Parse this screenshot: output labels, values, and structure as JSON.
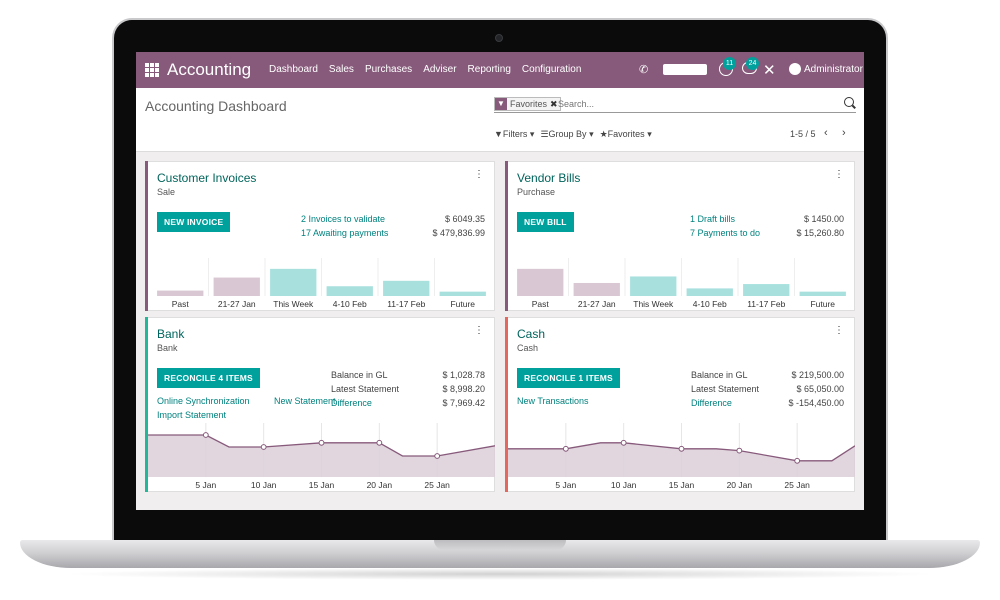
{
  "app": {
    "name": "Accounting",
    "menu": [
      "Dashboard",
      "Sales",
      "Purchases",
      "Adviser",
      "Reporting",
      "Configuration"
    ],
    "activity_count": "11",
    "message_count": "24",
    "user": "Administrator",
    "brand_color": "#875a7b",
    "accent_color": "#00a09d"
  },
  "control": {
    "title": "Accounting Dashboard",
    "facet_label": "Favorites",
    "search_placeholder": "Search...",
    "filters_label": "Filters",
    "groupby_label": "Group By",
    "favorites_label": "Favorites",
    "pager": "1-5 / 5"
  },
  "cards": {
    "customer_invoices": {
      "title": "Customer Invoices",
      "subtitle": "Sale",
      "button": "NEW INVOICE",
      "links": [
        "2 Invoices to validate",
        "17 Awaiting payments"
      ],
      "amounts": [
        "$ 6049.35",
        "$ 479,836.99"
      ],
      "accent": "#875a7b"
    },
    "vendor_bills": {
      "title": "Vendor Bills",
      "subtitle": "Purchase",
      "button": "NEW BILL",
      "links": [
        "1 Draft bills",
        "7 Payments to do"
      ],
      "amounts": [
        "$ 1450.00",
        "$ 15,260.80"
      ],
      "accent": "#875a7b"
    },
    "bank": {
      "title": "Bank",
      "subtitle": "Bank",
      "button": "RECONCILE 4 ITEMS",
      "links": [
        "Online Synchronization",
        "New Statement",
        "Import Statement"
      ],
      "labels": [
        "Balance in GL",
        "Latest Statement",
        "Difference"
      ],
      "amounts": [
        "$ 1,028.78",
        "$ 8,998.20",
        "$ 7,969.42"
      ],
      "accent": "#21b799"
    },
    "cash": {
      "title": "Cash",
      "subtitle": "Cash",
      "button": "RECONCILE 1 ITEMS",
      "links": [
        "New Transactions"
      ],
      "labels": [
        "Balance in GL",
        "Latest Statement",
        "Difference"
      ],
      "amounts": [
        "$ 219,500.00",
        "$ 65,050.00",
        "$ -154,450.00"
      ],
      "accent": "#e4685e"
    }
  },
  "chart_data": [
    {
      "type": "bar",
      "categories": [
        "Past",
        "21-27 Jan",
        "This Week",
        "4-10 Feb",
        "11-17 Feb",
        "Future"
      ],
      "values": [
        1,
        3.4,
        5,
        1.8,
        2.8,
        0.8
      ],
      "colors": [
        "#d9c8d4",
        "#d9c8d4",
        "#a8e0de",
        "#a8e0de",
        "#a8e0de",
        "#a8e0de"
      ],
      "ylim": [
        0,
        7
      ]
    },
    {
      "type": "bar",
      "categories": [
        "Past",
        "21-27 Jan",
        "This Week",
        "4-10 Feb",
        "11-17 Feb",
        "Future"
      ],
      "values": [
        5,
        2.4,
        3.6,
        1.4,
        2.2,
        0.8
      ],
      "colors": [
        "#d9c8d4",
        "#d9c8d4",
        "#a8e0de",
        "#a8e0de",
        "#a8e0de",
        "#a8e0de"
      ],
      "ylim": [
        0,
        7
      ]
    },
    {
      "type": "area",
      "x_ticks": [
        "5 Jan",
        "10 Jan",
        "15 Jan",
        "20 Jan",
        "25 Jan"
      ],
      "x": [
        0,
        2,
        5,
        7,
        10,
        15,
        20,
        22,
        25,
        30
      ],
      "values": [
        7,
        7,
        7,
        5,
        5,
        5.7,
        5.7,
        3.5,
        3.5,
        5.2
      ],
      "ylim": [
        0,
        9
      ]
    },
    {
      "type": "area",
      "x_ticks": [
        "5 Jan",
        "10 Jan",
        "15 Jan",
        "20 Jan",
        "25 Jan"
      ],
      "x": [
        0,
        5,
        8,
        10,
        15,
        18,
        20,
        25,
        28,
        30
      ],
      "values": [
        4.7,
        4.7,
        5.7,
        5.7,
        4.7,
        4.7,
        4.4,
        2.7,
        2.7,
        5.2
      ],
      "ylim": [
        0,
        9
      ]
    }
  ]
}
